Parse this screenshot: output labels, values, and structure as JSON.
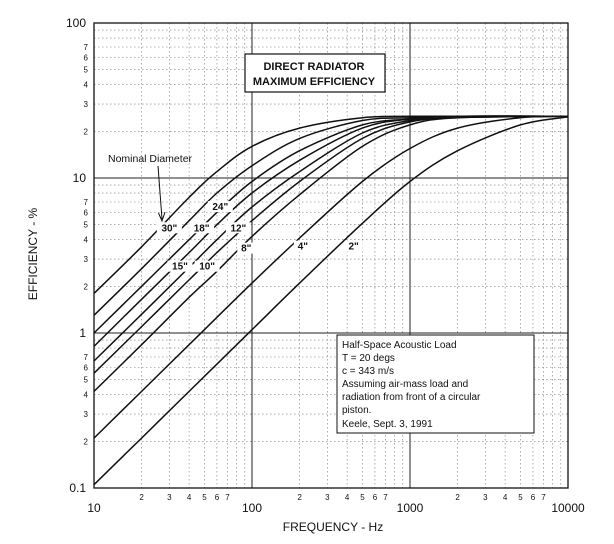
{
  "chart_data": {
    "type": "line",
    "title_lines": [
      "DIRECT RADIATOR",
      "MAXIMUM EFFICIENCY"
    ],
    "xlabel": "FREQUENCY - Hz",
    "ylabel": "EFFICIENCY - %",
    "x_scale": "log",
    "y_scale": "log",
    "xlim": [
      10,
      10000
    ],
    "ylim": [
      0.1,
      100
    ],
    "grid": true,
    "x_major_ticks": [
      {
        "value": 10,
        "label": "10"
      },
      {
        "value": 100,
        "label": "100"
      },
      {
        "value": 1000,
        "label": "1000"
      },
      {
        "value": 10000,
        "label": "10000"
      }
    ],
    "y_major_ticks": [
      {
        "value": 0.1,
        "label": "0.1"
      },
      {
        "value": 1,
        "label": "1"
      },
      {
        "value": 10,
        "label": "10"
      },
      {
        "value": 100,
        "label": "100"
      }
    ],
    "minor_tick_labels": [
      "2",
      "3",
      "4",
      "5",
      "6",
      "7"
    ],
    "legend_title": "Nominal Diameter",
    "series": [
      {
        "name": "30\"",
        "x": [
          10,
          20,
          40,
          60,
          100,
          200,
          500,
          1000,
          2000,
          10000
        ],
        "y": [
          1.8,
          3.6,
          7.5,
          11,
          16,
          21,
          24.5,
          25,
          25,
          25
        ]
      },
      {
        "name": "24\"",
        "x": [
          10,
          20,
          40,
          60,
          100,
          200,
          500,
          1000,
          2000,
          10000
        ],
        "y": [
          1.3,
          2.6,
          5.3,
          8,
          12,
          18,
          23.5,
          24.5,
          25,
          25
        ]
      },
      {
        "name": "18\"",
        "x": [
          10,
          20,
          40,
          60,
          100,
          200,
          500,
          1000,
          2000,
          10000
        ],
        "y": [
          1.0,
          2.0,
          4.0,
          6,
          9.5,
          15,
          22,
          24,
          25,
          25
        ]
      },
      {
        "name": "15\"",
        "x": [
          10,
          20,
          40,
          60,
          100,
          200,
          500,
          1000,
          2000,
          10000
        ],
        "y": [
          0.82,
          1.65,
          3.3,
          5,
          8,
          13,
          21,
          24,
          25,
          25
        ]
      },
      {
        "name": "12\"",
        "x": [
          10,
          20,
          40,
          60,
          100,
          200,
          500,
          1000,
          2000,
          10000
        ],
        "y": [
          0.66,
          1.32,
          2.65,
          4,
          6.5,
          11,
          19.5,
          23.5,
          25,
          25
        ]
      },
      {
        "name": "10\"",
        "x": [
          10,
          20,
          40,
          60,
          100,
          200,
          500,
          1000,
          2000,
          10000
        ],
        "y": [
          0.55,
          1.1,
          2.2,
          3.3,
          5.3,
          9.5,
          18,
          23,
          24.5,
          25
        ]
      },
      {
        "name": "8\"",
        "x": [
          10,
          20,
          40,
          60,
          100,
          200,
          500,
          1000,
          2000,
          10000
        ],
        "y": [
          0.42,
          0.84,
          1.7,
          2.5,
          4.2,
          7.8,
          16,
          22,
          24.5,
          25
        ]
      },
      {
        "name": "4\"",
        "x": [
          10,
          20,
          40,
          100,
          200,
          500,
          1000,
          2000,
          5000,
          10000
        ],
        "y": [
          0.21,
          0.42,
          0.84,
          2.1,
          4.1,
          9.5,
          15.5,
          21,
          24.5,
          25
        ]
      },
      {
        "name": "2\"",
        "x": [
          10,
          20,
          40,
          100,
          200,
          500,
          1000,
          2000,
          5000,
          10000
        ],
        "y": [
          0.105,
          0.21,
          0.42,
          1.05,
          2.1,
          5.1,
          9.5,
          15,
          22,
          24.8
        ]
      }
    ],
    "series_label_positions": [
      {
        "name": "30\"",
        "x": 30,
        "y": 4.6
      },
      {
        "name": "24\"",
        "x": 63,
        "y": 6.3
      },
      {
        "name": "18\"",
        "x": 48,
        "y": 4.6
      },
      {
        "name": "15\"",
        "x": 35,
        "y": 2.6
      },
      {
        "name": "12\"",
        "x": 82,
        "y": 4.6
      },
      {
        "name": "10\"",
        "x": 52,
        "y": 2.6
      },
      {
        "name": "8\"",
        "x": 92,
        "y": 3.4
      },
      {
        "name": "4\"",
        "x": 210,
        "y": 3.5
      },
      {
        "name": "2\"",
        "x": 440,
        "y": 3.5
      }
    ],
    "annotation_lines": [
      "Half-Space Acoustic Load",
      "T = 20 degs",
      "c = 343 m/s",
      "Assuming air-mass load and",
      "radiation from front of a circular",
      "piston.",
      "Keele, Sept. 3, 1991"
    ]
  }
}
